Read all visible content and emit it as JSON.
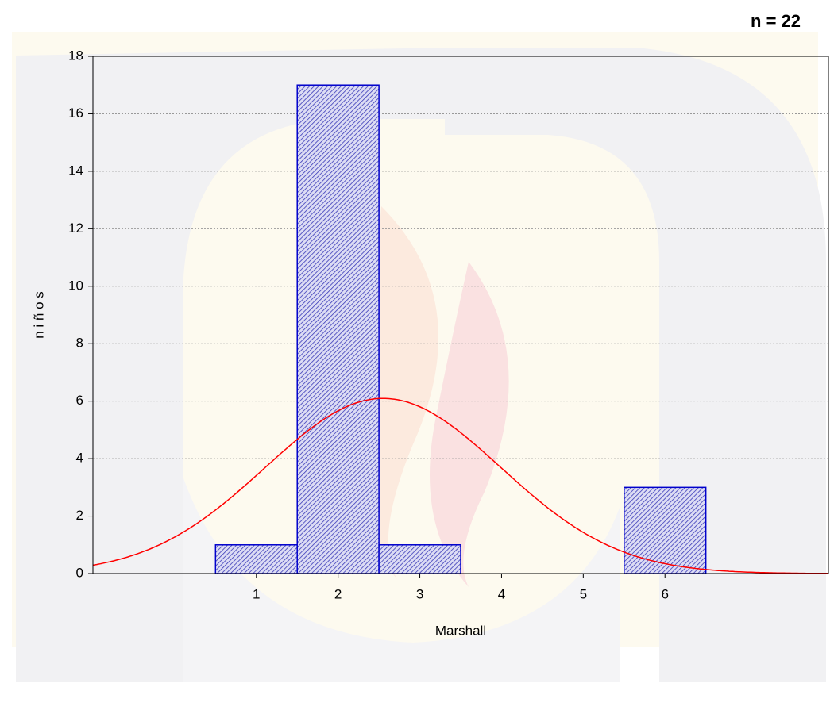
{
  "chart_data": {
    "type": "histogram",
    "annotation": "n = 22",
    "xlabel": "Marshall",
    "ylabel": "n i ñ o s",
    "bins": [
      0.5,
      1.5,
      2.5,
      3.5,
      4.5,
      5.5,
      6.5
    ],
    "values": [
      1,
      17,
      1,
      0,
      0,
      3
    ],
    "color": "#0000cc",
    "xlim": [
      -1,
      8
    ],
    "xticks": [
      1,
      2,
      3,
      4,
      5,
      6
    ],
    "ylim": [
      0,
      18
    ],
    "yticks": [
      0,
      2,
      4,
      6,
      8,
      10,
      12,
      14,
      16,
      18
    ],
    "grid": true,
    "normal_fit": {
      "mean": 2.55,
      "sd": 1.44,
      "color": "#ff0000"
    }
  }
}
